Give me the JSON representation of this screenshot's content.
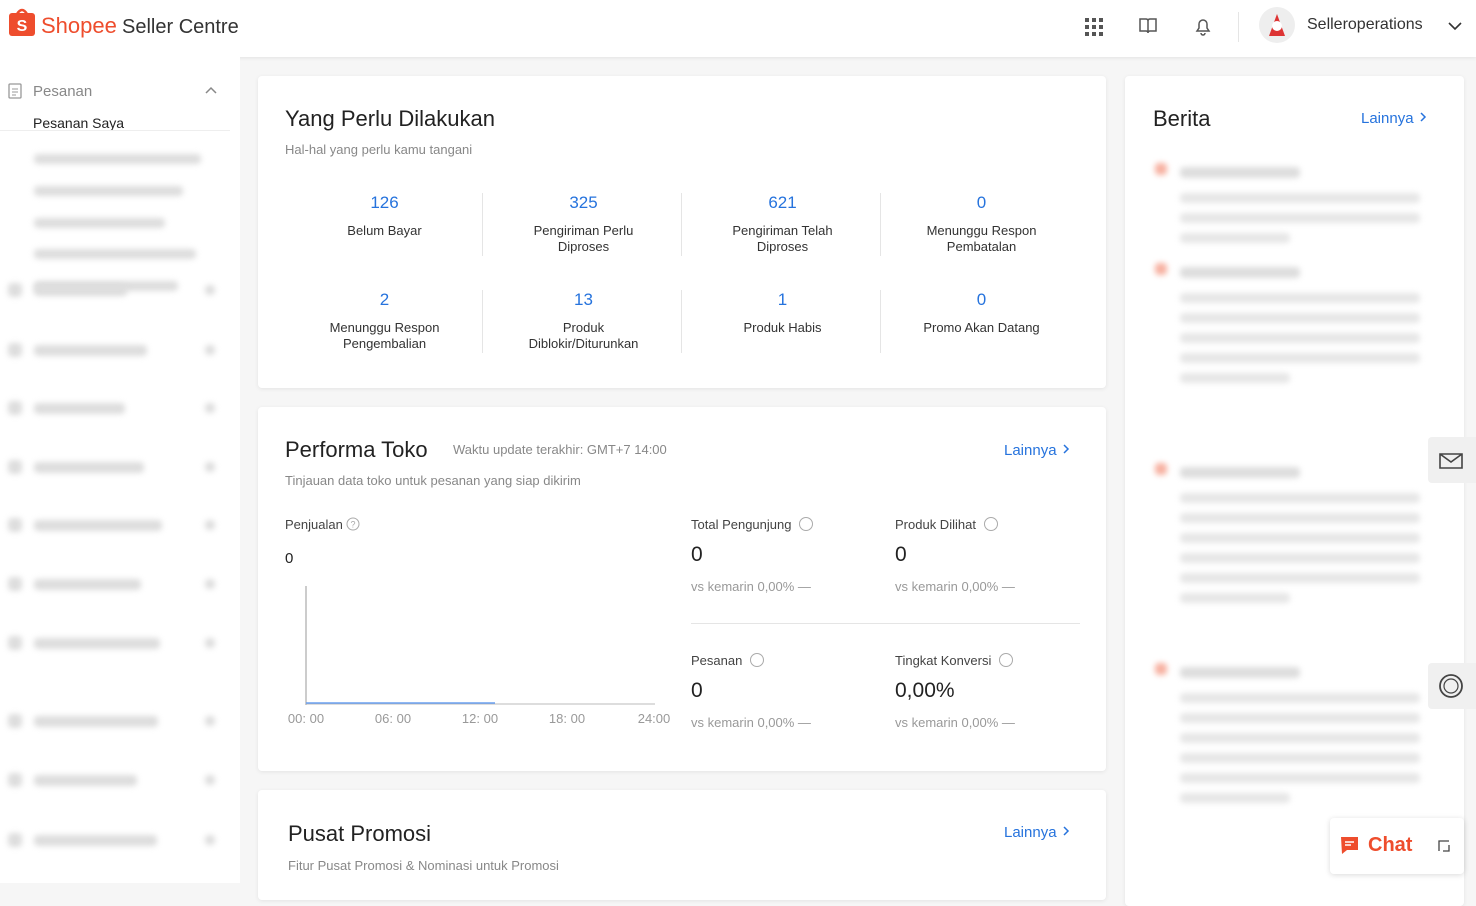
{
  "header": {
    "brand": "Shopee",
    "product": "Seller Centre",
    "user": "Selleroperations"
  },
  "sidebar": {
    "section": "Pesanan",
    "item": "Pesanan Saya"
  },
  "todo": {
    "title": "Yang Perlu Dilakukan",
    "subtitle": "Hal-hal yang perlu kamu tangani",
    "items": [
      {
        "value": 126,
        "label": "Belum Bayar"
      },
      {
        "value": 325,
        "label": "Pengiriman Perlu Diproses"
      },
      {
        "value": 621,
        "label": "Pengiriman Telah Diproses"
      },
      {
        "value": 0,
        "label": "Menunggu Respon Pembatalan"
      },
      {
        "value": 2,
        "label": "Menunggu Respon Pengembalian"
      },
      {
        "value": 13,
        "label": "Produk Diblokir/Diturunkan"
      },
      {
        "value": 1,
        "label": "Produk Habis"
      },
      {
        "value": 0,
        "label": "Promo Akan Datang"
      }
    ]
  },
  "performance": {
    "title": "Performa Toko",
    "update": "Waktu update terakhir: GMT+7 14:00",
    "more": "Lainnya",
    "subtitle": "Tinjauan data toko untuk pesanan yang siap dikirim",
    "sales": {
      "label": "Penjualan",
      "value": 0,
      "xticks": [
        "00: 00",
        "06: 00",
        "12: 00",
        "18: 00",
        "24:00"
      ]
    },
    "metrics": [
      {
        "label": "Total Pengunjung",
        "value": 0,
        "compare": "vs kemarin 0,00% —"
      },
      {
        "label": "Produk Dilihat",
        "value": 0,
        "compare": "vs kemarin 0,00% —"
      },
      {
        "label": "Pesanan",
        "value": 0,
        "compare": "vs kemarin 0,00% —"
      },
      {
        "label": "Tingkat Konversi",
        "value": "0,00%",
        "compare": "vs kemarin 0,00% —"
      }
    ]
  },
  "promo": {
    "title": "Pusat Promosi",
    "more": "Lainnya",
    "subtitle": "Fitur Pusat Promosi & Nominasi untuk Promosi"
  },
  "news": {
    "title": "Berita",
    "more": "Lainnya"
  },
  "chat": "Chat"
}
